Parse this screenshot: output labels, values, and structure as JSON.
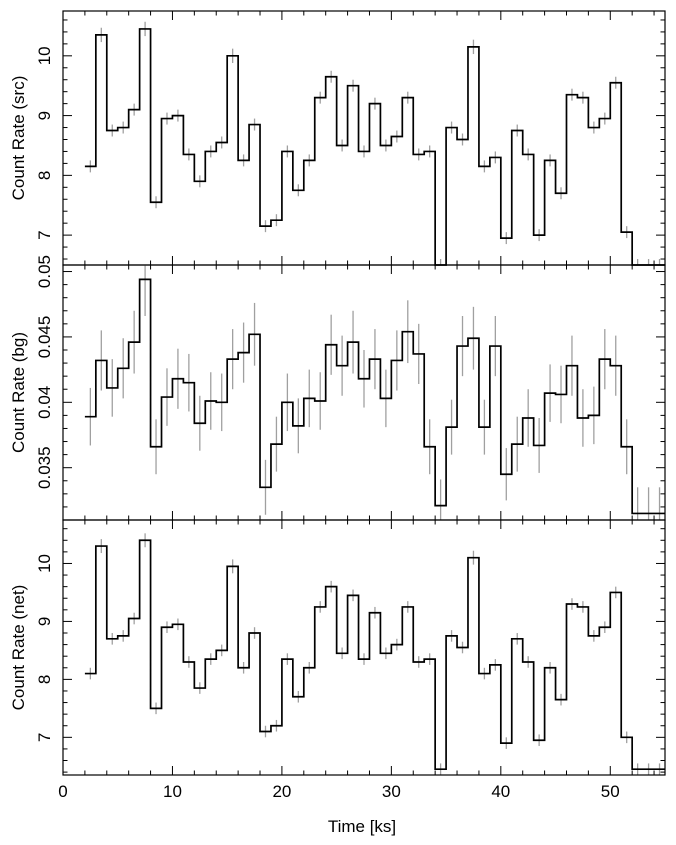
{
  "chart_data": [
    {
      "type": "line",
      "panel": "src",
      "ylabel": "Count Rate (src)",
      "xlabel": "",
      "xlim": [
        0,
        55
      ],
      "ylim": [
        6.5,
        10.75
      ],
      "xticks": [
        0,
        10,
        20,
        30,
        40,
        50
      ],
      "yticks": [
        7,
        8,
        9,
        10
      ],
      "ytick_labels": [
        "7",
        "8",
        "9",
        "10"
      ],
      "step": "post",
      "x": [
        2.0,
        3.0,
        4.0,
        5.0,
        6.0,
        7.0,
        8.0,
        9.0,
        10.0,
        11.0,
        12.0,
        13.0,
        14.0,
        15.0,
        16.0,
        17.0,
        18.0,
        19.0,
        20.0,
        21.0,
        22.0,
        23.0,
        24.0,
        25.0,
        26.0,
        27.0,
        28.0,
        29.0,
        30.0,
        31.0,
        32.0,
        33.0,
        34.0,
        35.0,
        36.0,
        37.0,
        38.0,
        39.0,
        40.0,
        41.0,
        42.0,
        43.0,
        44.0,
        45.0,
        46.0,
        47.0,
        48.0,
        49.0,
        50.0,
        51.0,
        52.0,
        53.0,
        54.0
      ],
      "y": [
        8.15,
        10.35,
        8.75,
        8.8,
        9.1,
        10.45,
        7.55,
        8.95,
        9.0,
        8.35,
        7.9,
        8.4,
        8.55,
        10.0,
        8.25,
        8.85,
        7.15,
        7.25,
        8.4,
        7.75,
        8.25,
        9.3,
        9.65,
        8.5,
        9.5,
        8.4,
        9.2,
        8.5,
        8.65,
        9.3,
        8.35,
        8.4,
        6.5,
        8.8,
        8.6,
        10.15,
        8.15,
        8.3,
        6.95,
        8.75,
        8.35,
        7.0,
        8.25,
        7.7,
        9.35,
        9.3,
        8.8,
        8.95,
        9.55,
        7.05,
        6.5,
        6.5,
        6.5
      ],
      "yerr": [
        0.1,
        0.12,
        0.1,
        0.1,
        0.1,
        0.12,
        0.1,
        0.1,
        0.1,
        0.1,
        0.1,
        0.1,
        0.1,
        0.12,
        0.1,
        0.1,
        0.1,
        0.1,
        0.1,
        0.1,
        0.1,
        0.1,
        0.1,
        0.1,
        0.1,
        0.1,
        0.1,
        0.1,
        0.1,
        0.1,
        0.1,
        0.1,
        0.1,
        0.1,
        0.1,
        0.12,
        0.1,
        0.1,
        0.1,
        0.1,
        0.1,
        0.1,
        0.1,
        0.1,
        0.1,
        0.1,
        0.1,
        0.1,
        0.1,
        0.1,
        0.1,
        0.1,
        0.1
      ]
    },
    {
      "type": "line",
      "panel": "bg",
      "ylabel": "Count Rate (bg)",
      "xlabel": "",
      "xlim": [
        0,
        55
      ],
      "ylim": [
        0.031,
        0.0505
      ],
      "xticks": [
        0,
        10,
        20,
        30,
        40,
        50
      ],
      "yticks": [
        0.035,
        0.04,
        0.045,
        0.05
      ],
      "ytick_labels": [
        "0.035",
        "0.04",
        "0.045",
        "0.05"
      ],
      "step": "post",
      "x": [
        2.0,
        3.0,
        4.0,
        5.0,
        6.0,
        7.0,
        8.0,
        9.0,
        10.0,
        11.0,
        12.0,
        13.0,
        14.0,
        15.0,
        16.0,
        17.0,
        18.0,
        19.0,
        20.0,
        21.0,
        22.0,
        23.0,
        24.0,
        25.0,
        26.0,
        27.0,
        28.0,
        29.0,
        30.0,
        31.0,
        32.0,
        33.0,
        34.0,
        35.0,
        36.0,
        37.0,
        38.0,
        39.0,
        40.0,
        41.0,
        42.0,
        43.0,
        44.0,
        45.0,
        46.0,
        47.0,
        48.0,
        49.0,
        50.0,
        51.0,
        52.0,
        53.0,
        54.0
      ],
      "y": [
        0.0389,
        0.0432,
        0.0411,
        0.0426,
        0.0446,
        0.0494,
        0.0366,
        0.0404,
        0.0418,
        0.0415,
        0.0384,
        0.0401,
        0.04,
        0.0433,
        0.0438,
        0.0452,
        0.0335,
        0.0368,
        0.04,
        0.0382,
        0.0403,
        0.0401,
        0.0444,
        0.0428,
        0.0446,
        0.0418,
        0.0433,
        0.0403,
        0.0432,
        0.0454,
        0.0437,
        0.0366,
        0.0321,
        0.0381,
        0.0443,
        0.0449,
        0.0381,
        0.0443,
        0.0345,
        0.0368,
        0.0388,
        0.0367,
        0.0407,
        0.0406,
        0.0428,
        0.0388,
        0.039,
        0.0433,
        0.0428,
        0.0366,
        0.0315,
        0.0315,
        0.0315
      ],
      "yerr": [
        0.0022,
        0.0023,
        0.0022,
        0.0023,
        0.0024,
        0.0028,
        0.0021,
        0.0022,
        0.0023,
        0.0022,
        0.0021,
        0.0022,
        0.0022,
        0.0023,
        0.0023,
        0.0024,
        0.0021,
        0.0021,
        0.0022,
        0.0021,
        0.0022,
        0.0022,
        0.0023,
        0.0023,
        0.0024,
        0.0022,
        0.0023,
        0.0022,
        0.0023,
        0.0024,
        0.0023,
        0.0021,
        0.002,
        0.0021,
        0.0023,
        0.0024,
        0.0021,
        0.0023,
        0.002,
        0.0021,
        0.0022,
        0.0021,
        0.0022,
        0.0022,
        0.0023,
        0.0022,
        0.0022,
        0.0023,
        0.0023,
        0.0021,
        0.002,
        0.002,
        0.002
      ]
    },
    {
      "type": "line",
      "panel": "net",
      "ylabel": "Count Rate (net)",
      "xlabel": "Time [ks]",
      "xlim": [
        0,
        55
      ],
      "ylim": [
        6.35,
        10.75
      ],
      "xticks": [
        0,
        10,
        20,
        30,
        40,
        50
      ],
      "xtick_labels": [
        "0",
        "10",
        "20",
        "30",
        "40",
        "50"
      ],
      "yticks": [
        7,
        8,
        9,
        10
      ],
      "ytick_labels": [
        "7",
        "8",
        "9",
        "10"
      ],
      "step": "post",
      "x": [
        2.0,
        3.0,
        4.0,
        5.0,
        6.0,
        7.0,
        8.0,
        9.0,
        10.0,
        11.0,
        12.0,
        13.0,
        14.0,
        15.0,
        16.0,
        17.0,
        18.0,
        19.0,
        20.0,
        21.0,
        22.0,
        23.0,
        24.0,
        25.0,
        26.0,
        27.0,
        28.0,
        29.0,
        30.0,
        31.0,
        32.0,
        33.0,
        34.0,
        35.0,
        36.0,
        37.0,
        38.0,
        39.0,
        40.0,
        41.0,
        42.0,
        43.0,
        44.0,
        45.0,
        46.0,
        47.0,
        48.0,
        49.0,
        50.0,
        51.0,
        52.0,
        53.0,
        54.0
      ],
      "y": [
        8.1,
        10.3,
        8.7,
        8.75,
        9.05,
        10.4,
        7.5,
        8.9,
        8.95,
        8.3,
        7.85,
        8.35,
        8.5,
        9.95,
        8.2,
        8.8,
        7.1,
        7.2,
        8.35,
        7.7,
        8.2,
        9.25,
        9.6,
        8.45,
        9.45,
        8.35,
        9.15,
        8.45,
        8.6,
        9.25,
        8.3,
        8.35,
        6.45,
        8.75,
        8.55,
        10.1,
        8.1,
        8.25,
        6.9,
        8.7,
        8.3,
        6.95,
        8.2,
        7.65,
        9.3,
        9.25,
        8.75,
        8.9,
        9.5,
        7.0,
        6.45,
        6.45,
        6.45
      ],
      "yerr": [
        0.1,
        0.12,
        0.1,
        0.1,
        0.1,
        0.12,
        0.1,
        0.1,
        0.1,
        0.1,
        0.1,
        0.1,
        0.1,
        0.12,
        0.1,
        0.1,
        0.1,
        0.1,
        0.1,
        0.1,
        0.1,
        0.1,
        0.1,
        0.1,
        0.1,
        0.1,
        0.1,
        0.1,
        0.1,
        0.1,
        0.1,
        0.1,
        0.1,
        0.1,
        0.1,
        0.12,
        0.1,
        0.1,
        0.1,
        0.1,
        0.1,
        0.1,
        0.1,
        0.1,
        0.1,
        0.1,
        0.1,
        0.1,
        0.1,
        0.1,
        0.1,
        0.1,
        0.1
      ]
    }
  ],
  "colors": {
    "step_line": "#000000",
    "error_bar": "#a0a0a0",
    "frame": "#000000",
    "background": "#ffffff"
  }
}
